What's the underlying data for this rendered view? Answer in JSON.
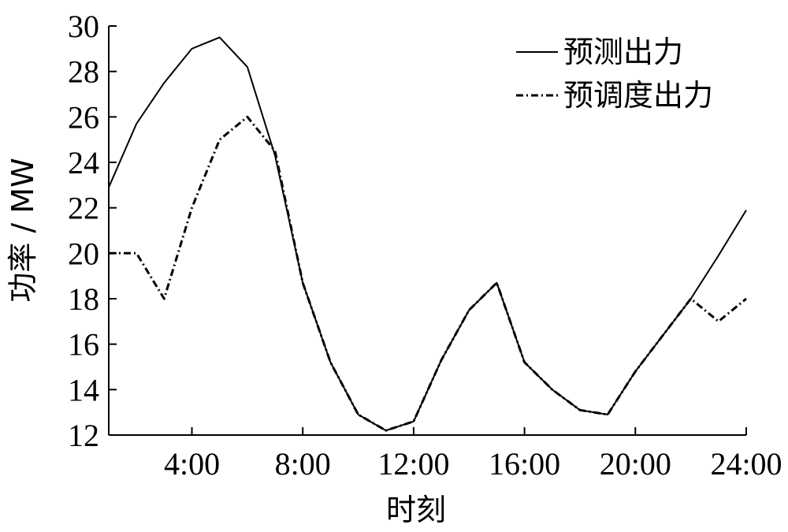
{
  "chart_data": {
    "type": "line",
    "xlabel": "时刻",
    "ylabel": "功率 / MW",
    "xlim": [
      1,
      24
    ],
    "ylim": [
      12,
      30
    ],
    "x_ticks": [
      {
        "value": 4,
        "label": "4:00"
      },
      {
        "value": 8,
        "label": "8:00"
      },
      {
        "value": 12,
        "label": "12:00"
      },
      {
        "value": 16,
        "label": "16:00"
      },
      {
        "value": 20,
        "label": "20:00"
      },
      {
        "value": 24,
        "label": "24:00"
      }
    ],
    "y_ticks": [
      12,
      14,
      16,
      18,
      20,
      22,
      24,
      26,
      28,
      30
    ],
    "grid": false,
    "legend_position": "top-right",
    "x": [
      1,
      2,
      3,
      4,
      5,
      6,
      7,
      8,
      9,
      10,
      11,
      12,
      13,
      14,
      15,
      16,
      17,
      18,
      19,
      20,
      21,
      22,
      23,
      24
    ],
    "series": [
      {
        "name": "预测出力",
        "style": "solid",
        "values": [
          22.9,
          25.7,
          27.5,
          29.0,
          29.5,
          28.2,
          24.3,
          18.7,
          15.2,
          12.9,
          12.2,
          12.6,
          15.3,
          17.5,
          18.7,
          15.2,
          14.0,
          13.1,
          12.9,
          14.8,
          16.4,
          18.0,
          19.9,
          21.9
        ]
      },
      {
        "name": "预调度出力",
        "style": "dashdot",
        "values": [
          20.0,
          20.0,
          18.0,
          22.0,
          25.0,
          26.0,
          24.5,
          18.7,
          15.2,
          12.9,
          12.2,
          12.6,
          15.3,
          17.5,
          18.7,
          15.2,
          14.0,
          13.1,
          12.9,
          14.8,
          16.4,
          18.0,
          17.0,
          18.0
        ]
      }
    ]
  }
}
